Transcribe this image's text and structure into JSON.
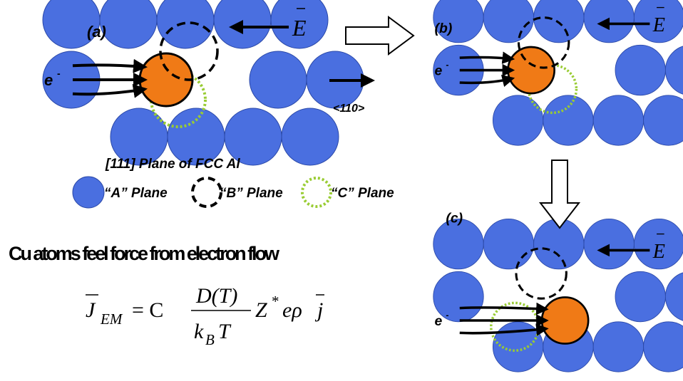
{
  "panels": [
    {
      "label": "(a)"
    },
    {
      "label": "(b)"
    },
    {
      "label": "(c)"
    }
  ],
  "electron": "e",
  "electron_sup": "-",
  "field": "E",
  "direction": "<110>",
  "legend": {
    "title": "[111] Plane of FCC Al",
    "items": [
      "“A” Plane",
      "“B” Plane",
      "“C” Plane"
    ]
  },
  "caption": "Cu atoms feel force from electron flow",
  "equation": {
    "lhs": "J",
    "lhs_sub": "EM",
    "eq": "= C",
    "num": "D(T)",
    "den": "k",
    "den_sub": "B",
    "den_tail": "T",
    "z": "Z",
    "z_sup": "*",
    "tail": "eρ",
    "j": "j"
  }
}
